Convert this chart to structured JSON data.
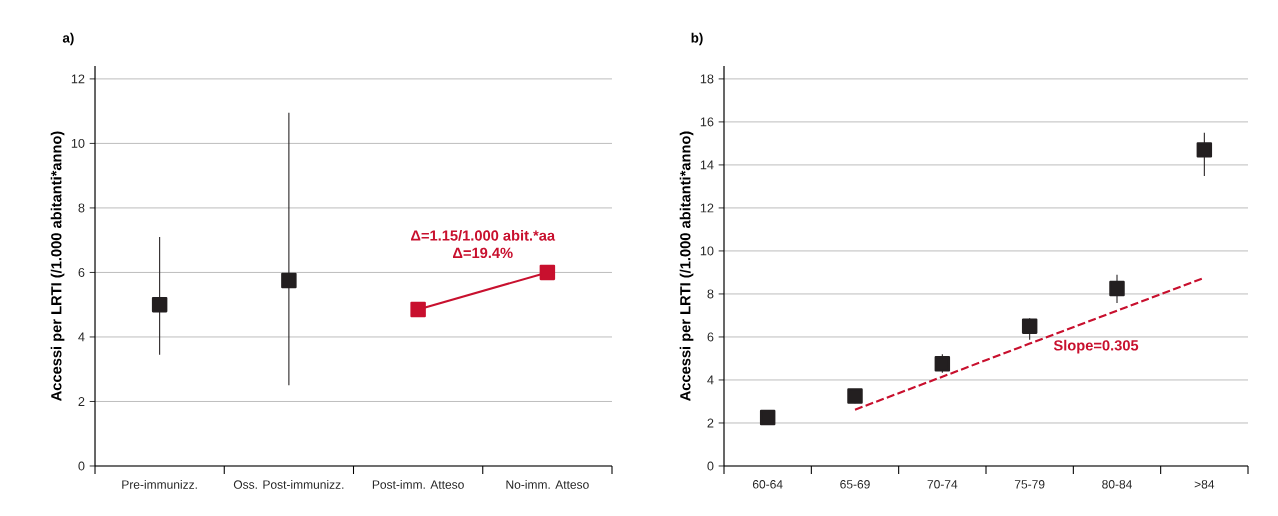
{
  "chart_data": [
    {
      "type": "scatter",
      "title": "a)",
      "ylabel": "Accessi per LRTI (/1.000 abitanti*anno)",
      "categories": [
        "Pre-immunizz.",
        "Oss. Post-immunizz.",
        "Post-imm. Atteso",
        "No-imm. Atteso"
      ],
      "ylim": [
        0,
        12.4
      ],
      "yticks": [
        0,
        2,
        4,
        6,
        8,
        10,
        12
      ],
      "grid": "y",
      "marker": "square",
      "annotations": [
        "Δ=1.15/1.000 abit.*aa",
        "Δ=19.4%"
      ],
      "series": [
        {
          "color": "#231f20",
          "values": [
            5.0,
            5.75,
            null,
            null
          ],
          "errors": [
            [
              3.45,
              7.1
            ],
            [
              2.5,
              10.95
            ],
            null,
            null
          ]
        },
        {
          "type": "line",
          "color": "#c8102e",
          "values": [
            null,
            null,
            4.85,
            6.0
          ]
        }
      ]
    },
    {
      "type": "scatter",
      "title": "b)",
      "ylabel": "Accessi per LRTI (/1.000 abitanti*anno)",
      "categories": [
        "60-64",
        "65-69",
        "70-74",
        "75-79",
        "80-84",
        ">84"
      ],
      "ylim": [
        0,
        18.6
      ],
      "yticks": [
        0,
        2,
        4,
        6,
        8,
        10,
        12,
        14,
        16,
        18
      ],
      "grid": "y",
      "marker": "square",
      "annotations": [
        "Slope=0.305"
      ],
      "series": [
        {
          "color": "#231f20",
          "values": [
            2.25,
            3.25,
            4.75,
            6.5,
            8.25,
            14.7
          ],
          "errors": [
            null,
            [
              2.92,
              3.54
            ],
            [
              4.34,
              5.19
            ],
            [
              5.87,
              6.87
            ],
            [
              7.58,
              8.89
            ],
            [
              13.49,
              15.5
            ]
          ]
        },
        {
          "type": "line",
          "values": [
            null,
            2.62,
            4.15,
            5.69,
            7.22,
            8.75
          ],
          "color": "#c8102e",
          "line_style": "dashed",
          "marker": "none"
        }
      ]
    }
  ]
}
